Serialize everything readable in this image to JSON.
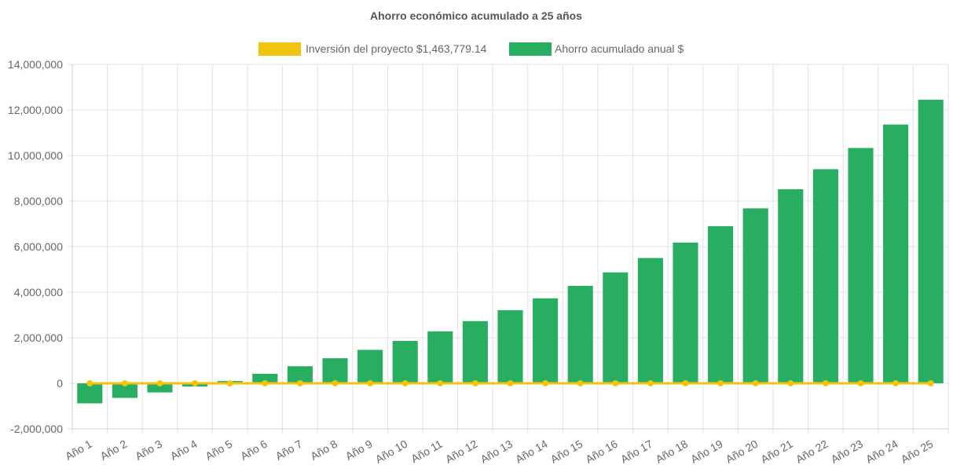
{
  "chart_data": {
    "type": "bar",
    "title": "Ahorro económico acumulado a 25 años",
    "categories": [
      "Año 1",
      "Año 2",
      "Año 3",
      "Año 4",
      "Año 5",
      "Año 6",
      "Año 7",
      "Año 8",
      "Año 9",
      "Año 10",
      "Año 11",
      "Año 12",
      "Año 13",
      "Año 14",
      "Año 15",
      "Año 16",
      "Año 17",
      "Año 18",
      "Año 19",
      "Año 20",
      "Año 21",
      "Año 22",
      "Año 23",
      "Año 24",
      "Año 25"
    ],
    "series": [
      {
        "name": "Inversión del proyecto $1,463,779.14",
        "type": "line",
        "color": "#f1c40f",
        "values": [
          0,
          0,
          0,
          0,
          0,
          0,
          0,
          0,
          0,
          0,
          0,
          0,
          0,
          0,
          0,
          0,
          0,
          0,
          0,
          0,
          0,
          0,
          0,
          0,
          0
        ]
      },
      {
        "name": "Ahorro acumulado anual $",
        "type": "bar",
        "color": "#27ae60",
        "values": [
          -880000,
          -640000,
          -400000,
          -140000,
          100000,
          420000,
          750000,
          1100000,
          1470000,
          1860000,
          2280000,
          2730000,
          3210000,
          3730000,
          4280000,
          4870000,
          5500000,
          6180000,
          6900000,
          7680000,
          8520000,
          9400000,
          10330000,
          11360000,
          12450000
        ]
      }
    ],
    "ylim": [
      -2000000,
      14000000
    ],
    "yticks": [
      "14,000,000",
      "12,000,000",
      "10,000,000",
      "8,000,000",
      "6,000,000",
      "4,000,000",
      "2,000,000",
      "0",
      "-2,000,000"
    ],
    "ytick_values": [
      14000000,
      12000000,
      10000000,
      8000000,
      6000000,
      4000000,
      2000000,
      0,
      -2000000
    ],
    "legend_position": "top-center",
    "grid": true
  }
}
